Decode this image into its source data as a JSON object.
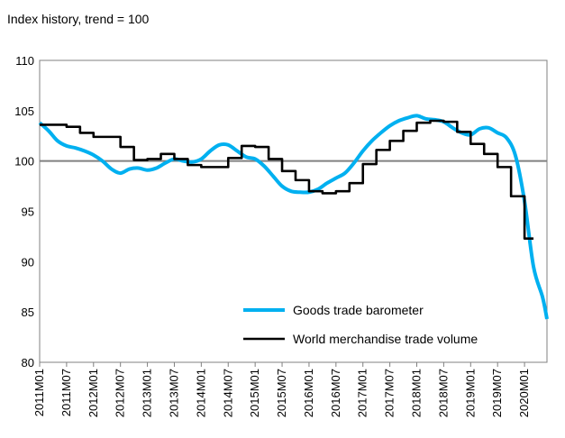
{
  "chart_data": {
    "type": "line",
    "title": "Index history, trend = 100",
    "xlabel": "",
    "ylabel": "",
    "ylim": [
      80,
      110
    ],
    "yticks": [
      80,
      85,
      90,
      95,
      100,
      105,
      110
    ],
    "xlim": [
      "2011M01",
      "2020M06"
    ],
    "xticks": [
      "2011M01",
      "2011M07",
      "2012M01",
      "2012M07",
      "2013M01",
      "2013M07",
      "2014M01",
      "2014M07",
      "2015M01",
      "2015M07",
      "2016M01",
      "2016M07",
      "2017M01",
      "2017M07",
      "2018M01",
      "2018M07",
      "2019M01",
      "2019M07",
      "2020M01"
    ],
    "reference_line": 100,
    "grid": false,
    "legend_position": "bottom-right-inside",
    "series": [
      {
        "name": "Goods trade barometer",
        "color": "#00b0f0",
        "style": "smooth",
        "points": [
          [
            "2011M01",
            103.8
          ],
          [
            "2011M03",
            103.0
          ],
          [
            "2011M05",
            102.0
          ],
          [
            "2011M07",
            101.5
          ],
          [
            "2011M09",
            101.3
          ],
          [
            "2011M11",
            101.0
          ],
          [
            "2012M01",
            100.6
          ],
          [
            "2012M03",
            100.0
          ],
          [
            "2012M05",
            99.2
          ],
          [
            "2012M07",
            98.8
          ],
          [
            "2012M09",
            99.2
          ],
          [
            "2012M11",
            99.3
          ],
          [
            "2013M01",
            99.1
          ],
          [
            "2013M03",
            99.3
          ],
          [
            "2013M05",
            99.8
          ],
          [
            "2013M07",
            100.2
          ],
          [
            "2013M09",
            100.0
          ],
          [
            "2013M11",
            99.9
          ],
          [
            "2014M01",
            100.2
          ],
          [
            "2014M03",
            101.0
          ],
          [
            "2014M05",
            101.6
          ],
          [
            "2014M07",
            101.6
          ],
          [
            "2014M09",
            101.0
          ],
          [
            "2014M11",
            100.4
          ],
          [
            "2015M01",
            100.2
          ],
          [
            "2015M03",
            99.5
          ],
          [
            "2015M05",
            98.5
          ],
          [
            "2015M07",
            97.5
          ],
          [
            "2015M09",
            97.0
          ],
          [
            "2015M11",
            96.9
          ],
          [
            "2016M01",
            96.9
          ],
          [
            "2016M03",
            97.2
          ],
          [
            "2016M05",
            97.8
          ],
          [
            "2016M07",
            98.3
          ],
          [
            "2016M09",
            98.8
          ],
          [
            "2016M11",
            99.8
          ],
          [
            "2017M01",
            101.0
          ],
          [
            "2017M03",
            102.0
          ],
          [
            "2017M05",
            102.8
          ],
          [
            "2017M07",
            103.5
          ],
          [
            "2017M09",
            104.0
          ],
          [
            "2017M11",
            104.3
          ],
          [
            "2018M01",
            104.5
          ],
          [
            "2018M03",
            104.2
          ],
          [
            "2018M05",
            104.1
          ],
          [
            "2018M07",
            103.9
          ],
          [
            "2018M09",
            103.3
          ],
          [
            "2018M11",
            102.8
          ],
          [
            "2019M01",
            102.6
          ],
          [
            "2019M03",
            103.2
          ],
          [
            "2019M05",
            103.3
          ],
          [
            "2019M07",
            102.8
          ],
          [
            "2019M09",
            102.3
          ],
          [
            "2019M11",
            100.5
          ],
          [
            "2020M01",
            96.0
          ],
          [
            "2020M03",
            89.5
          ],
          [
            "2020M05",
            86.5
          ],
          [
            "2020M06",
            84.3
          ]
        ]
      },
      {
        "name": "World merchandise trade volume",
        "color": "#000000",
        "style": "step",
        "points": [
          [
            "2011M01",
            103.6
          ],
          [
            "2011M04",
            103.6
          ],
          [
            "2011M07",
            103.4
          ],
          [
            "2011M10",
            102.8
          ],
          [
            "2012M01",
            102.4
          ],
          [
            "2012M04",
            102.4
          ],
          [
            "2012M07",
            101.4
          ],
          [
            "2012M10",
            100.1
          ],
          [
            "2013M01",
            100.2
          ],
          [
            "2013M04",
            100.7
          ],
          [
            "2013M07",
            100.2
          ],
          [
            "2013M10",
            99.6
          ],
          [
            "2014M01",
            99.4
          ],
          [
            "2014M04",
            99.4
          ],
          [
            "2014M07",
            100.3
          ],
          [
            "2014M10",
            101.5
          ],
          [
            "2015M01",
            101.4
          ],
          [
            "2015M04",
            100.2
          ],
          [
            "2015M07",
            99.0
          ],
          [
            "2015M10",
            98.1
          ],
          [
            "2016M01",
            97.0
          ],
          [
            "2016M04",
            96.8
          ],
          [
            "2016M07",
            97.0
          ],
          [
            "2016M10",
            97.8
          ],
          [
            "2017M01",
            99.7
          ],
          [
            "2017M04",
            101.1
          ],
          [
            "2017M07",
            102.0
          ],
          [
            "2017M10",
            103.0
          ],
          [
            "2018M01",
            103.8
          ],
          [
            "2018M04",
            104.0
          ],
          [
            "2018M07",
            103.9
          ],
          [
            "2018M10",
            102.9
          ],
          [
            "2019M01",
            101.7
          ],
          [
            "2019M04",
            100.7
          ],
          [
            "2019M07",
            99.4
          ],
          [
            "2019M10",
            96.5
          ],
          [
            "2020M01",
            92.3
          ],
          [
            "2020M03",
            92.3
          ]
        ]
      }
    ]
  }
}
